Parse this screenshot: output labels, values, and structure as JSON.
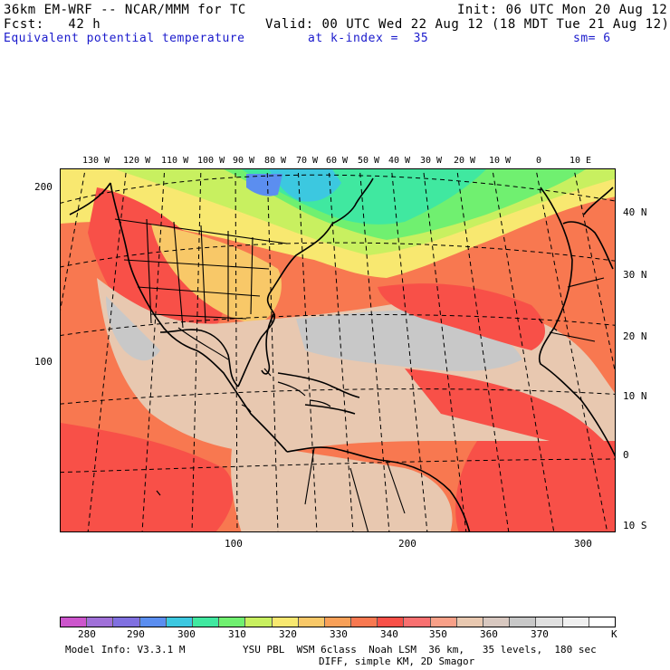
{
  "header": {
    "line1_left": "36km EM-WRF -- NCAR/MMM for TC",
    "line1_right": "Init: 06 UTC Mon 20 Aug 12",
    "line2_left": "Fcst:   42 h",
    "line2_right": "Valid: 00 UTC Wed 22 Aug 12 (18 MDT Tue 21 Aug 12)",
    "line3_field": "Equivalent potential temperature",
    "line3_level": "at k-index =  35",
    "line3_smooth": "sm= 6"
  },
  "map": {
    "longitude_labels": [
      "130 W",
      "120 W",
      "110 W",
      "100 W",
      "90 W",
      "80 W",
      "70 W",
      "60 W",
      "50 W",
      "40 W",
      "30 W",
      "20 W",
      "10 W",
      "0",
      "10 E"
    ],
    "latitude_labels": [
      "40 N",
      "30 N",
      "20 N",
      "10 N",
      "0",
      "10 S"
    ],
    "grid_y_labels": [
      "200",
      "100"
    ],
    "grid_x_labels": [
      "100",
      "200",
      "300"
    ]
  },
  "colorbar": {
    "colors": [
      "#cc55cc",
      "#a070d8",
      "#8070e0",
      "#5b8ef0",
      "#3cc8e0",
      "#40e8a0",
      "#70f070",
      "#c8f060",
      "#f8e870",
      "#f8c868",
      "#f8a058",
      "#f87850",
      "#f85048",
      "#f87070",
      "#f8a088",
      "#e8c8b0",
      "#d8c8c0",
      "#c8c8c8",
      "#e0e0e0",
      "#f0f0f0",
      "#ffffff"
    ],
    "labels": [
      "280",
      "290",
      "300",
      "310",
      "320",
      "330",
      "340",
      "350",
      "360",
      "370"
    ],
    "unit": "K"
  },
  "footer": {
    "line1_left": "Model Info: V3.3.1 M",
    "line1_right": "YSU PBL  WSM 6class  Noah LSM  36 km,   35 levels,  180 sec",
    "line2": "DIFF, simple KM, 2D Smagor"
  }
}
